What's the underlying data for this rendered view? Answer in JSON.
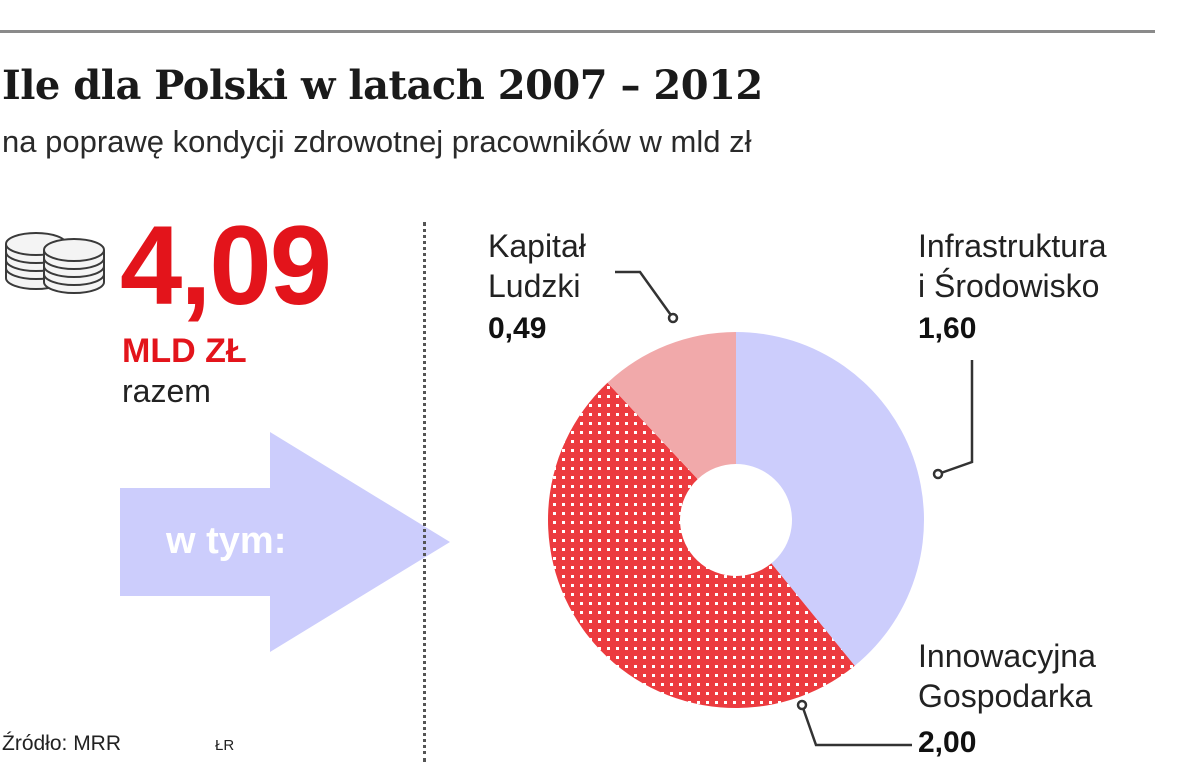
{
  "title": "Ile dla Polski w latach 2007 – 2012",
  "subtitle": "na poprawę kondycji zdrowotnej pracowników w mld zł",
  "total": {
    "value": "4,09",
    "unit": "MLD ZŁ",
    "note": "razem"
  },
  "arrow_label": "w tym:",
  "source": "Źródło: MRR",
  "author": "ŁR",
  "colors": {
    "accent": "#e3141b",
    "infrastructure": "#cccdfc",
    "human_capital": "#f1a9aa",
    "innovation": "#ec3b3f",
    "arrow": "#cccdfc"
  },
  "chart_data": {
    "type": "pie",
    "style": "donut",
    "unit": "mld zł",
    "slices": [
      {
        "label": "Infrastruktura i Środowisko",
        "label_lines": [
          "Infrastruktura",
          "i Środowisko"
        ],
        "value": 1.6,
        "value_label": "1,60",
        "color": "#cccdfc",
        "pattern": "solid"
      },
      {
        "label": "Innowacyjna Gospodarka",
        "label_lines": [
          "Innowacyjna",
          "Gospodarka"
        ],
        "value": 2.0,
        "value_label": "2,00",
        "color": "#ec3b3f",
        "pattern": "grid"
      },
      {
        "label": "Kapitał Ludzki",
        "label_lines": [
          "Kapitał",
          "Ludzki"
        ],
        "value": 0.49,
        "value_label": "0,49",
        "color": "#f1a9aa",
        "pattern": "solid"
      }
    ]
  }
}
